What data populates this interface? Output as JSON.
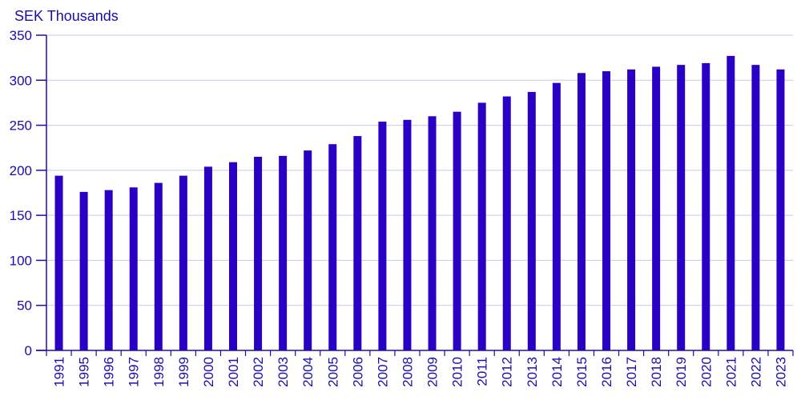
{
  "chart_data": {
    "type": "bar",
    "title": "",
    "ylabel": "SEK Thousands",
    "xlabel": "",
    "categories": [
      "1991",
      "1995",
      "1996",
      "1997",
      "1998",
      "1999",
      "2000",
      "2001",
      "2002",
      "2003",
      "2004",
      "2005",
      "2006",
      "2007",
      "2008",
      "2009",
      "2010",
      "2011",
      "2012",
      "2013",
      "2014",
      "2015",
      "2016",
      "2017",
      "2018",
      "2019",
      "2020",
      "2021",
      "2022",
      "2023"
    ],
    "values": [
      194,
      176,
      178,
      181,
      186,
      194,
      204,
      209,
      215,
      216,
      222,
      229,
      238,
      254,
      256,
      260,
      265,
      275,
      282,
      287,
      297,
      308,
      310,
      312,
      315,
      317,
      319,
      327,
      317,
      312
    ],
    "ylim": [
      0,
      350
    ],
    "yticks": [
      0,
      50,
      100,
      150,
      200,
      250,
      300,
      350
    ],
    "grid": true,
    "legend": "none",
    "colors": {
      "bar": "#2a00c4",
      "text": "#1a0dab",
      "grid": "#c8c8ea",
      "axis": "#1a0dab"
    }
  }
}
